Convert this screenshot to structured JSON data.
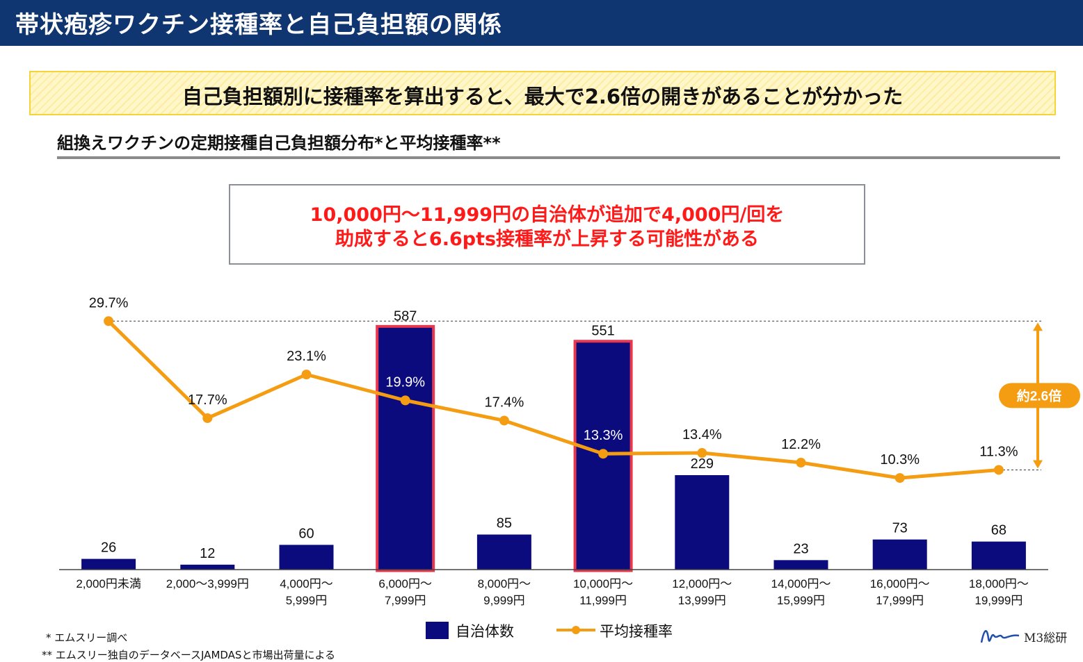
{
  "header": {
    "title": "帯状疱疹ワクチン接種率と自己負担額の関係"
  },
  "headline": "自己負担額別に接種率を算出すると、最大で2.6倍の開きがあることが分かった",
  "subtitle": "組換えワクチンの定期接種自己負担額分布*と平均接種率**",
  "callout": {
    "line1": "10,000円～11,999円の自治体が追加で4,000円/回を",
    "line2": "助成すると6.6pts接種率が上昇する可能性がある"
  },
  "annotation": {
    "ratio_label": "約2.6倍"
  },
  "legend": {
    "bar_label": "自治体数",
    "line_label": "平均接種率"
  },
  "footnotes": {
    "note1": "* エムスリー調べ",
    "note2": "** エムスリー独自のデータベースJAMDASと市場出荷量による"
  },
  "logo": {
    "text": "M3総研"
  },
  "colors": {
    "header_bg": "#0f3670",
    "bar": "#0b0b7e",
    "bar_highlight_border": "#e8384f",
    "line": "#f59d12",
    "callout_text": "#ff1a1a"
  },
  "chart_data": {
    "type": "bar+line",
    "categories": [
      [
        "2,000円未満"
      ],
      [
        "2,000～3,999円"
      ],
      [
        "4,000円～",
        "5,999円"
      ],
      [
        "6,000円～",
        "7,999円"
      ],
      [
        "8,000円～",
        "9,999円"
      ],
      [
        "10,000円～",
        "11,999円"
      ],
      [
        "12,000円～",
        "13,999円"
      ],
      [
        "14,000円～",
        "15,999円"
      ],
      [
        "16,000円～",
        "17,999円"
      ],
      [
        "18,000円～",
        "19,999円"
      ]
    ],
    "series": [
      {
        "name": "自治体数",
        "type": "bar",
        "values": [
          26,
          12,
          60,
          587,
          85,
          551,
          229,
          23,
          73,
          68
        ],
        "labels": [
          "26",
          "12",
          "60",
          "587",
          "85",
          "551",
          "229",
          "23",
          "73",
          "68"
        ],
        "highlighted": [
          3,
          5
        ]
      },
      {
        "name": "平均接種率",
        "type": "line",
        "values": [
          29.7,
          17.7,
          23.1,
          19.9,
          17.4,
          13.3,
          13.4,
          12.2,
          10.3,
          11.3
        ],
        "labels": [
          "29.7%",
          "17.7%",
          "23.1%",
          "19.9%",
          "17.4%",
          "13.3%",
          "13.4%",
          "12.2%",
          "10.3%",
          "11.3%"
        ],
        "unit": "%"
      }
    ],
    "bar_ylim": [
      0,
      660
    ],
    "line_ylim": [
      0,
      44
    ],
    "reference_lines": [
      29.7,
      11.3
    ]
  }
}
